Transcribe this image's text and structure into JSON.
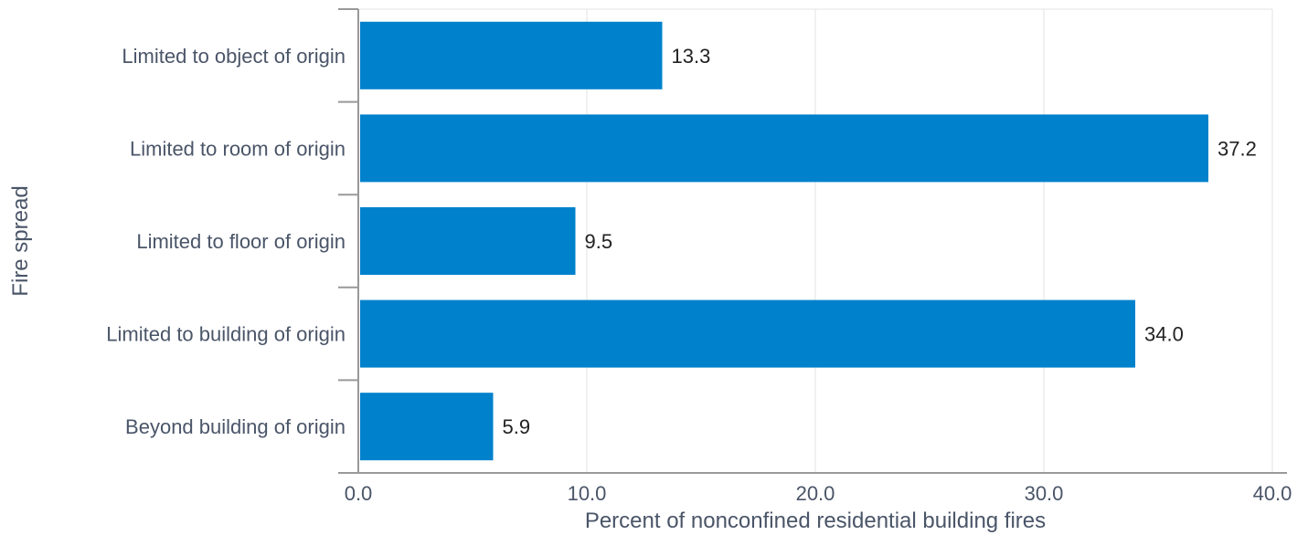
{
  "chart_data": {
    "type": "bar",
    "orientation": "horizontal",
    "title": "",
    "xlabel": "Percent of nonconfined residential building fires",
    "ylabel": "Fire spread",
    "categories": [
      "Limited to object of origin",
      "Limited to room of origin",
      "Limited to floor of origin",
      "Limited to building of origin",
      "Beyond building of origin"
    ],
    "values": [
      13.3,
      37.2,
      9.5,
      34.0,
      5.9
    ],
    "value_labels": [
      "13.3",
      "37.2",
      "9.5",
      "34.0",
      "5.9"
    ],
    "xlim": [
      0,
      40
    ],
    "x_ticks": [
      0,
      10,
      20,
      30,
      40
    ],
    "x_tick_labels": [
      "0.0",
      "10.0",
      "20.0",
      "30.0",
      "40.0"
    ],
    "grid": true,
    "legend": "none",
    "bar_color": "#0081cc",
    "grid_color": "#e3e3e3",
    "axis_color": "#999999"
  }
}
